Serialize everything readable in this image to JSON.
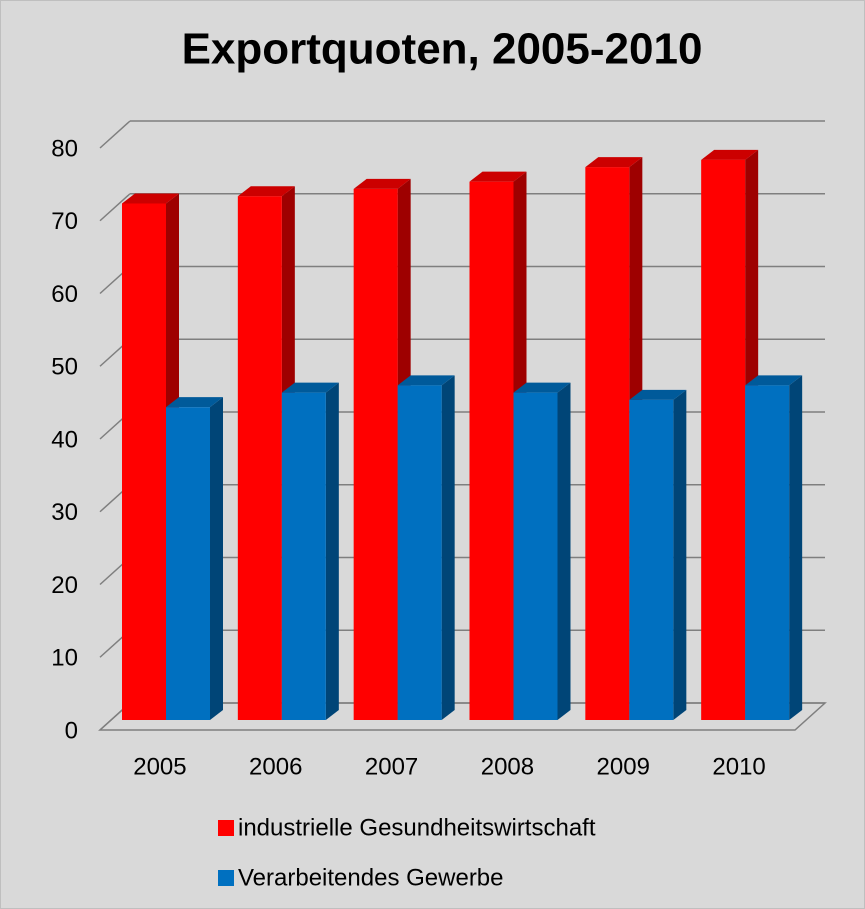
{
  "chart_data": {
    "type": "bar3d",
    "title": "Exportquoten, 2005-2010",
    "categories": [
      "2005",
      "2006",
      "2007",
      "2008",
      "2009",
      "2010"
    ],
    "series": [
      {
        "name": "industrielle Gesundheitswirtschaft",
        "color": "#ff0000",
        "values": [
          71,
          72,
          73,
          74,
          76,
          77
        ]
      },
      {
        "name": "Verarbeitendes Gewerbe",
        "color": "#0070c0",
        "values": [
          43,
          45,
          46,
          45,
          44,
          46
        ]
      }
    ],
    "ylim": [
      0,
      80
    ],
    "yticks": [
      0,
      10,
      20,
      30,
      40,
      50,
      60,
      70,
      80
    ],
    "grid": true
  }
}
